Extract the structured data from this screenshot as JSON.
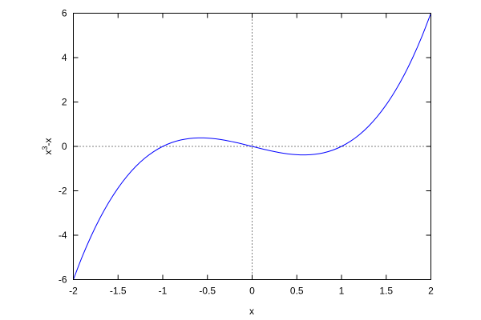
{
  "chart_data": {
    "type": "line",
    "title": "",
    "xlabel": "x",
    "ylabel_base": "x",
    "ylabel_sup": "3",
    "ylabel_rest": "-x",
    "xlim": [
      -2,
      2
    ],
    "ylim": [
      -6,
      6
    ],
    "xticks": [
      "-2",
      "-1.5",
      "-1",
      "-0.5",
      "0",
      "0.5",
      "1",
      "1.5",
      "2"
    ],
    "yticks": [
      "-6",
      "-4",
      "-2",
      "0",
      "2",
      "4",
      "6"
    ],
    "zero_axes": "dotted",
    "grid": false,
    "series": [
      {
        "color": "#0000ff",
        "x": [
          -2,
          -1.9,
          -1.8,
          -1.7,
          -1.6,
          -1.5,
          -1.4,
          -1.3,
          -1.2,
          -1.1,
          -1,
          -0.9,
          -0.8,
          -0.7,
          -0.6,
          -0.5,
          -0.4,
          -0.3,
          -0.2,
          -0.1,
          0,
          0.1,
          0.2,
          0.3,
          0.4,
          0.5,
          0.6,
          0.7,
          0.8,
          0.9,
          1,
          1.1,
          1.2,
          1.3,
          1.4,
          1.5,
          1.6,
          1.7,
          1.8,
          1.9,
          2
        ],
        "y": [
          -6,
          -4.959,
          -4.032,
          -3.213,
          -2.496,
          -1.875,
          -1.344,
          -0.897,
          -0.528,
          -0.231,
          0,
          0.171,
          0.288,
          0.357,
          0.384,
          0.375,
          0.336,
          0.273,
          0.192,
          0.099,
          0,
          -0.099,
          -0.192,
          -0.273,
          -0.336,
          -0.375,
          -0.384,
          -0.357,
          -0.288,
          -0.171,
          0,
          0.231,
          0.528,
          0.897,
          1.344,
          1.875,
          2.496,
          3.213,
          4.032,
          4.959,
          6
        ]
      }
    ]
  }
}
